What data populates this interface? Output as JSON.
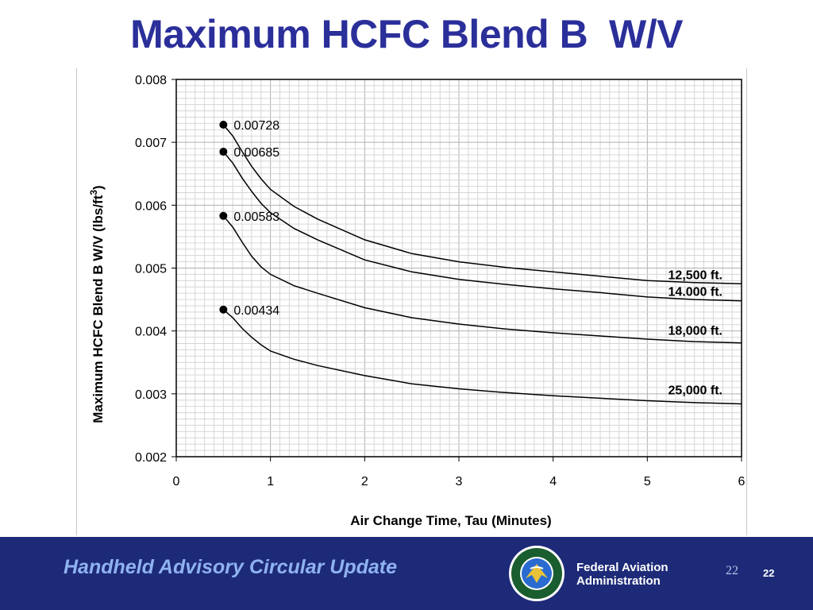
{
  "slide": {
    "title": "Maximum HCFC Blend B  W/V"
  },
  "footer": {
    "text": "Handheld Advisory Circular Update",
    "agency_line1": "Federal Aviation",
    "agency_line2": "Administration",
    "page_number_serif": "22",
    "page_number_bold": "22",
    "background_color": "#1d2a78",
    "logo_icon": "faa-seal-icon"
  },
  "chart_data": {
    "type": "line",
    "xlabel": "Air Change Time, Tau  (Minutes)",
    "ylabel_main": "Maximum HCFC Blend B  W/V  (lbs/ft",
    "ylabel_sup": "3",
    "ylabel_close": ")",
    "xlim": [
      0,
      6
    ],
    "ylim": [
      0.002,
      0.008
    ],
    "x_ticks": [
      "0",
      "1",
      "2",
      "3",
      "4",
      "5",
      "6"
    ],
    "y_ticks": [
      "0.008",
      "0.007",
      "0.006",
      "0.005",
      "0.004",
      "0.003",
      "0.002"
    ],
    "grid": true,
    "series": [
      {
        "name": "12,500 ft.",
        "start_label": "0.00728",
        "x": [
          0.5,
          0.6,
          0.7,
          0.8,
          0.9,
          1.0,
          1.25,
          1.5,
          2.0,
          2.5,
          3.0,
          3.5,
          4.0,
          4.5,
          5.0,
          5.5,
          6.0
        ],
        "y": [
          0.00728,
          0.0071,
          0.00685,
          0.00662,
          0.00642,
          0.00625,
          0.00598,
          0.00578,
          0.00545,
          0.00523,
          0.0051,
          0.00501,
          0.00494,
          0.00487,
          0.0048,
          0.00477,
          0.00475
        ]
      },
      {
        "name": "14.000 ft.",
        "start_label": "0.00685",
        "x": [
          0.5,
          0.6,
          0.7,
          0.8,
          0.9,
          1.0,
          1.25,
          1.5,
          2.0,
          2.5,
          3.0,
          3.5,
          4.0,
          4.5,
          5.0,
          5.5,
          6.0
        ],
        "y": [
          0.00685,
          0.00667,
          0.00643,
          0.00622,
          0.00603,
          0.00588,
          0.00563,
          0.00545,
          0.00513,
          0.00494,
          0.00482,
          0.00474,
          0.00467,
          0.00461,
          0.00454,
          0.0045,
          0.00448
        ]
      },
      {
        "name": "18,000 ft.",
        "start_label": "0.00583",
        "x": [
          0.5,
          0.6,
          0.7,
          0.8,
          0.9,
          1.0,
          1.25,
          1.5,
          2.0,
          2.5,
          3.0,
          3.5,
          4.0,
          4.5,
          5.0,
          5.5,
          6.0
        ],
        "y": [
          0.00583,
          0.00565,
          0.00541,
          0.00519,
          0.00502,
          0.0049,
          0.00472,
          0.0046,
          0.00437,
          0.00421,
          0.00411,
          0.00403,
          0.00397,
          0.00392,
          0.00387,
          0.00383,
          0.00381
        ]
      },
      {
        "name": "25,000 ft.",
        "start_label": "0.00434",
        "x": [
          0.5,
          0.6,
          0.7,
          0.8,
          0.9,
          1.0,
          1.25,
          1.5,
          2.0,
          2.5,
          3.0,
          3.5,
          4.0,
          4.5,
          5.0,
          5.5,
          6.0
        ],
        "y": [
          0.00434,
          0.00421,
          0.00404,
          0.0039,
          0.00378,
          0.00368,
          0.00355,
          0.00345,
          0.00329,
          0.00316,
          0.00308,
          0.00302,
          0.00297,
          0.00293,
          0.00289,
          0.00286,
          0.00284
        ]
      }
    ]
  }
}
